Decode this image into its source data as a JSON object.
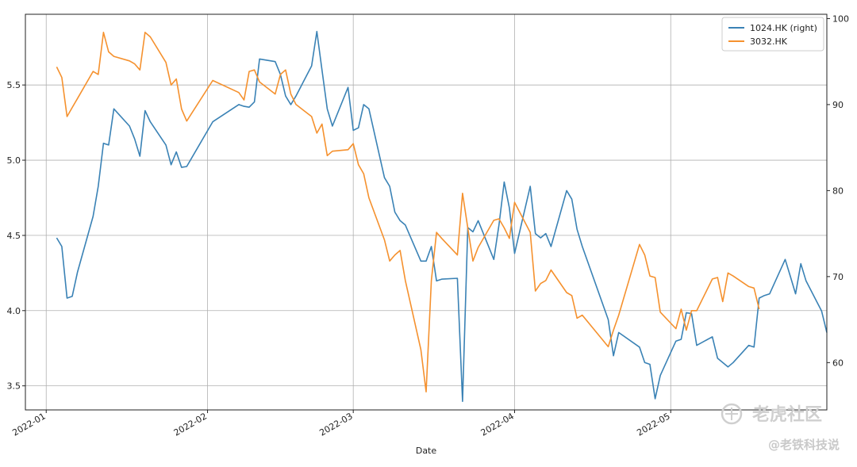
{
  "chart_data": {
    "type": "line",
    "xlabel": "Date",
    "x_range": [
      "2021-12-28",
      "2022-05-31"
    ],
    "x_ticks": [
      {
        "date": "2022-01-01",
        "label": "2022-01"
      },
      {
        "date": "2022-02-01",
        "label": "2022-02"
      },
      {
        "date": "2022-03-01",
        "label": "2022-03"
      },
      {
        "date": "2022-04-01",
        "label": "2022-04"
      },
      {
        "date": "2022-05-01",
        "label": "2022-05"
      }
    ],
    "left_axis": {
      "ylim": [
        3.34,
        5.97
      ],
      "ticks": [
        "3.5",
        "4.0",
        "4.5",
        "5.0",
        "5.5"
      ],
      "tick_values": [
        3.5,
        4.0,
        4.5,
        5.0,
        5.5
      ]
    },
    "right_axis": {
      "ylim": [
        54.5,
        100.5
      ],
      "ticks": [
        "60",
        "70",
        "80",
        "90",
        "100"
      ],
      "tick_values": [
        60,
        70,
        80,
        90,
        100
      ]
    },
    "grid": true,
    "legend_position": "top-right",
    "series": [
      {
        "name": "1024.HK (right)",
        "axis": "right",
        "color": "#3a82b5",
        "points": [
          [
            "2022-01-03",
            74.5
          ],
          [
            "2022-01-04",
            73.5
          ],
          [
            "2022-01-05",
            67.5
          ],
          [
            "2022-01-06",
            67.7
          ],
          [
            "2022-01-07",
            70.5
          ],
          [
            "2022-01-10",
            77.0
          ],
          [
            "2022-01-11",
            80.5
          ],
          [
            "2022-01-12",
            85.5
          ],
          [
            "2022-01-13",
            85.3
          ],
          [
            "2022-01-14",
            89.5
          ],
          [
            "2022-01-17",
            87.5
          ],
          [
            "2022-01-18",
            86.0
          ],
          [
            "2022-01-19",
            84.0
          ],
          [
            "2022-01-20",
            89.3
          ],
          [
            "2022-01-21",
            88.0
          ],
          [
            "2022-01-24",
            85.3
          ],
          [
            "2022-01-25",
            83.0
          ],
          [
            "2022-01-26",
            84.5
          ],
          [
            "2022-01-27",
            82.7
          ],
          [
            "2022-01-28",
            82.8
          ],
          [
            "2022-02-02",
            88.0
          ],
          [
            "2022-02-07",
            90.0
          ],
          [
            "2022-02-08",
            89.8
          ],
          [
            "2022-02-09",
            89.7
          ],
          [
            "2022-02-10",
            90.3
          ],
          [
            "2022-02-11",
            95.3
          ],
          [
            "2022-02-14",
            95.0
          ],
          [
            "2022-02-15",
            93.5
          ],
          [
            "2022-02-16",
            91.0
          ],
          [
            "2022-02-17",
            90.0
          ],
          [
            "2022-02-18",
            91.0
          ],
          [
            "2022-02-21",
            94.5
          ],
          [
            "2022-02-22",
            98.5
          ],
          [
            "2022-02-23",
            94.0
          ],
          [
            "2022-02-24",
            89.5
          ],
          [
            "2022-02-25",
            87.5
          ],
          [
            "2022-02-28",
            92.0
          ],
          [
            "2022-03-01",
            87.0
          ],
          [
            "2022-03-02",
            87.3
          ],
          [
            "2022-03-03",
            90.0
          ],
          [
            "2022-03-04",
            89.5
          ],
          [
            "2022-03-07",
            81.5
          ],
          [
            "2022-03-08",
            80.5
          ],
          [
            "2022-03-09",
            77.5
          ],
          [
            "2022-03-10",
            76.5
          ],
          [
            "2022-03-11",
            76.0
          ],
          [
            "2022-03-14",
            71.8
          ],
          [
            "2022-03-15",
            71.8
          ],
          [
            "2022-03-16",
            73.5
          ],
          [
            "2022-03-17",
            69.5
          ],
          [
            "2022-03-18",
            69.7
          ],
          [
            "2022-03-21",
            69.8
          ],
          [
            "2022-03-22",
            55.5
          ],
          [
            "2022-03-23",
            75.7
          ],
          [
            "2022-03-24",
            75.2
          ],
          [
            "2022-03-25",
            76.5
          ],
          [
            "2022-03-28",
            72.0
          ],
          [
            "2022-03-29",
            76.0
          ],
          [
            "2022-03-30",
            81.0
          ],
          [
            "2022-03-31",
            78.0
          ],
          [
            "2022-04-01",
            72.7
          ],
          [
            "2022-04-04",
            80.5
          ],
          [
            "2022-04-05",
            75.0
          ],
          [
            "2022-04-06",
            74.5
          ],
          [
            "2022-04-07",
            75.0
          ],
          [
            "2022-04-08",
            73.5
          ],
          [
            "2022-04-11",
            80.0
          ],
          [
            "2022-04-12",
            79.0
          ],
          [
            "2022-04-13",
            75.5
          ],
          [
            "2022-04-14",
            73.5
          ],
          [
            "2022-04-19",
            65.0
          ],
          [
            "2022-04-20",
            60.8
          ],
          [
            "2022-04-21",
            63.5
          ],
          [
            "2022-04-25",
            61.8
          ],
          [
            "2022-04-26",
            60.0
          ],
          [
            "2022-04-27",
            59.8
          ],
          [
            "2022-04-28",
            55.8
          ],
          [
            "2022-04-29",
            58.5
          ],
          [
            "2022-05-02",
            62.5
          ],
          [
            "2022-05-03",
            62.7
          ],
          [
            "2022-05-04",
            65.8
          ],
          [
            "2022-05-05",
            65.7
          ],
          [
            "2022-05-06",
            62.0
          ],
          [
            "2022-05-09",
            63.0
          ],
          [
            "2022-05-10",
            60.5
          ],
          [
            "2022-05-11",
            60.0
          ],
          [
            "2022-05-12",
            59.5
          ],
          [
            "2022-05-13",
            60.0
          ],
          [
            "2022-05-16",
            62.0
          ],
          [
            "2022-05-17",
            61.8
          ],
          [
            "2022-05-18",
            67.5
          ],
          [
            "2022-05-19",
            67.8
          ],
          [
            "2022-05-20",
            68.0
          ],
          [
            "2022-05-23",
            72.0
          ],
          [
            "2022-05-24",
            70.0
          ],
          [
            "2022-05-25",
            68.0
          ],
          [
            "2022-05-26",
            71.5
          ],
          [
            "2022-05-27",
            69.5
          ],
          [
            "2022-05-30",
            66.0
          ],
          [
            "2022-05-31",
            63.5
          ]
        ]
      },
      {
        "name": "3032.HK",
        "axis": "left",
        "color": "#f5912e",
        "points": [
          [
            "2022-01-03",
            5.62
          ],
          [
            "2022-01-04",
            5.55
          ],
          [
            "2022-01-05",
            5.29
          ],
          [
            "2022-01-06",
            5.35
          ],
          [
            "2022-01-07",
            5.41
          ],
          [
            "2022-01-10",
            5.59
          ],
          [
            "2022-01-11",
            5.57
          ],
          [
            "2022-01-12",
            5.85
          ],
          [
            "2022-01-13",
            5.72
          ],
          [
            "2022-01-14",
            5.69
          ],
          [
            "2022-01-17",
            5.66
          ],
          [
            "2022-01-18",
            5.64
          ],
          [
            "2022-01-19",
            5.6
          ],
          [
            "2022-01-20",
            5.85
          ],
          [
            "2022-01-21",
            5.82
          ],
          [
            "2022-01-24",
            5.65
          ],
          [
            "2022-01-25",
            5.5
          ],
          [
            "2022-01-26",
            5.54
          ],
          [
            "2022-01-27",
            5.34
          ],
          [
            "2022-01-28",
            5.26
          ],
          [
            "2022-02-02",
            5.53
          ],
          [
            "2022-02-07",
            5.45
          ],
          [
            "2022-02-08",
            5.4
          ],
          [
            "2022-02-09",
            5.59
          ],
          [
            "2022-02-10",
            5.6
          ],
          [
            "2022-02-11",
            5.52
          ],
          [
            "2022-02-14",
            5.44
          ],
          [
            "2022-02-15",
            5.57
          ],
          [
            "2022-02-16",
            5.6
          ],
          [
            "2022-02-17",
            5.44
          ],
          [
            "2022-02-18",
            5.37
          ],
          [
            "2022-02-21",
            5.29
          ],
          [
            "2022-02-22",
            5.18
          ],
          [
            "2022-02-23",
            5.24
          ],
          [
            "2022-02-24",
            5.03
          ],
          [
            "2022-02-25",
            5.06
          ],
          [
            "2022-02-28",
            5.07
          ],
          [
            "2022-03-01",
            5.11
          ],
          [
            "2022-03-02",
            4.97
          ],
          [
            "2022-03-03",
            4.91
          ],
          [
            "2022-03-04",
            4.75
          ],
          [
            "2022-03-07",
            4.47
          ],
          [
            "2022-03-08",
            4.33
          ],
          [
            "2022-03-09",
            4.37
          ],
          [
            "2022-03-10",
            4.4
          ],
          [
            "2022-03-11",
            4.2
          ],
          [
            "2022-03-14",
            3.74
          ],
          [
            "2022-03-15",
            3.46
          ],
          [
            "2022-03-16",
            4.2
          ],
          [
            "2022-03-17",
            4.52
          ],
          [
            "2022-03-18",
            4.48
          ],
          [
            "2022-03-21",
            4.37
          ],
          [
            "2022-03-22",
            4.78
          ],
          [
            "2022-03-23",
            4.55
          ],
          [
            "2022-03-24",
            4.33
          ],
          [
            "2022-03-25",
            4.42
          ],
          [
            "2022-03-28",
            4.6
          ],
          [
            "2022-03-29",
            4.61
          ],
          [
            "2022-03-30",
            4.55
          ],
          [
            "2022-03-31",
            4.48
          ],
          [
            "2022-04-01",
            4.72
          ],
          [
            "2022-04-04",
            4.52
          ],
          [
            "2022-04-05",
            4.13
          ],
          [
            "2022-04-06",
            4.18
          ],
          [
            "2022-04-07",
            4.2
          ],
          [
            "2022-04-08",
            4.27
          ],
          [
            "2022-04-11",
            4.12
          ],
          [
            "2022-04-12",
            4.1
          ],
          [
            "2022-04-13",
            3.95
          ],
          [
            "2022-04-14",
            3.97
          ],
          [
            "2022-04-19",
            3.76
          ],
          [
            "2022-04-20",
            3.87
          ],
          [
            "2022-04-21",
            3.97
          ],
          [
            "2022-04-25",
            4.44
          ],
          [
            "2022-04-26",
            4.37
          ],
          [
            "2022-04-27",
            4.23
          ],
          [
            "2022-04-28",
            4.22
          ],
          [
            "2022-04-29",
            3.99
          ],
          [
            "2022-05-02",
            3.88
          ],
          [
            "2022-05-03",
            4.01
          ],
          [
            "2022-05-04",
            3.87
          ],
          [
            "2022-05-05",
            4.0
          ],
          [
            "2022-05-06",
            4.0
          ],
          [
            "2022-05-09",
            4.21
          ],
          [
            "2022-05-10",
            4.22
          ],
          [
            "2022-05-11",
            4.06
          ],
          [
            "2022-05-12",
            4.25
          ],
          [
            "2022-05-13",
            4.23
          ],
          [
            "2022-05-16",
            4.16
          ],
          [
            "2022-05-17",
            4.15
          ],
          [
            "2022-05-18",
            4.01
          ]
        ]
      }
    ]
  },
  "watermark": {
    "brand": "老虎社区",
    "handle": "@老铁科技说"
  }
}
